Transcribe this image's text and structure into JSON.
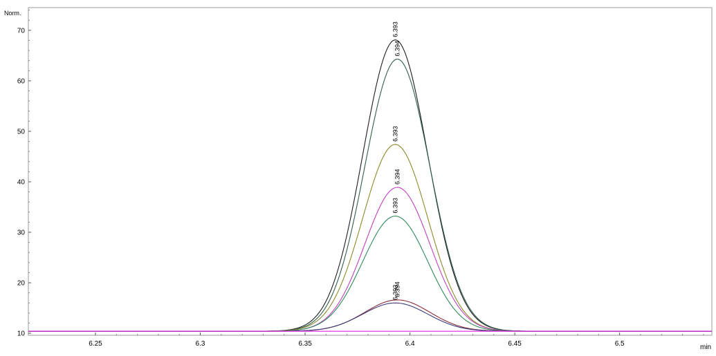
{
  "chart_data": {
    "type": "line",
    "title": "",
    "ylabel": "Norm.",
    "xlabel": "min",
    "xlim": [
      6.218,
      6.544
    ],
    "ylim": [
      9.6,
      74.5
    ],
    "x_ticks": [
      6.25,
      6.3,
      6.35,
      6.4,
      6.45,
      6.5
    ],
    "x_tick_labels": [
      "6.25",
      "6.3",
      "6.35",
      "6.4",
      "6.45",
      "6.5"
    ],
    "y_ticks": [
      10,
      20,
      30,
      40,
      50,
      60,
      70
    ],
    "y_tick_labels": [
      "10",
      "20",
      "30",
      "40",
      "50",
      "60",
      "70"
    ],
    "grid": false,
    "baseline": 10.4,
    "peak_width_sigma": 0.0155,
    "series": [
      {
        "color": "#1c1c24",
        "peak_x": 6.393,
        "peak_y": 68.1,
        "label": "6.393"
      },
      {
        "color": "#2f5f4a",
        "peak_x": 6.394,
        "peak_y": 64.3,
        "label": "6.394"
      },
      {
        "color": "#8a8a2a",
        "peak_x": 6.393,
        "peak_y": 47.4,
        "label": "6.393"
      },
      {
        "color": "#c040c0",
        "peak_x": 6.394,
        "peak_y": 38.9,
        "label": "6.394"
      },
      {
        "color": "#2e8a5a",
        "peak_x": 6.393,
        "peak_y": 33.2,
        "label": "6.393"
      },
      {
        "color": "#8a2a3a",
        "peak_x": 6.394,
        "peak_y": 16.6,
        "label": "6.394"
      },
      {
        "color": "#3a3a7a",
        "peak_x": 6.393,
        "peak_y": 16.0,
        "label": "6.393"
      },
      {
        "color": "#e020e0",
        "peak_x": 6.393,
        "peak_y": 10.4,
        "label": ""
      }
    ]
  }
}
